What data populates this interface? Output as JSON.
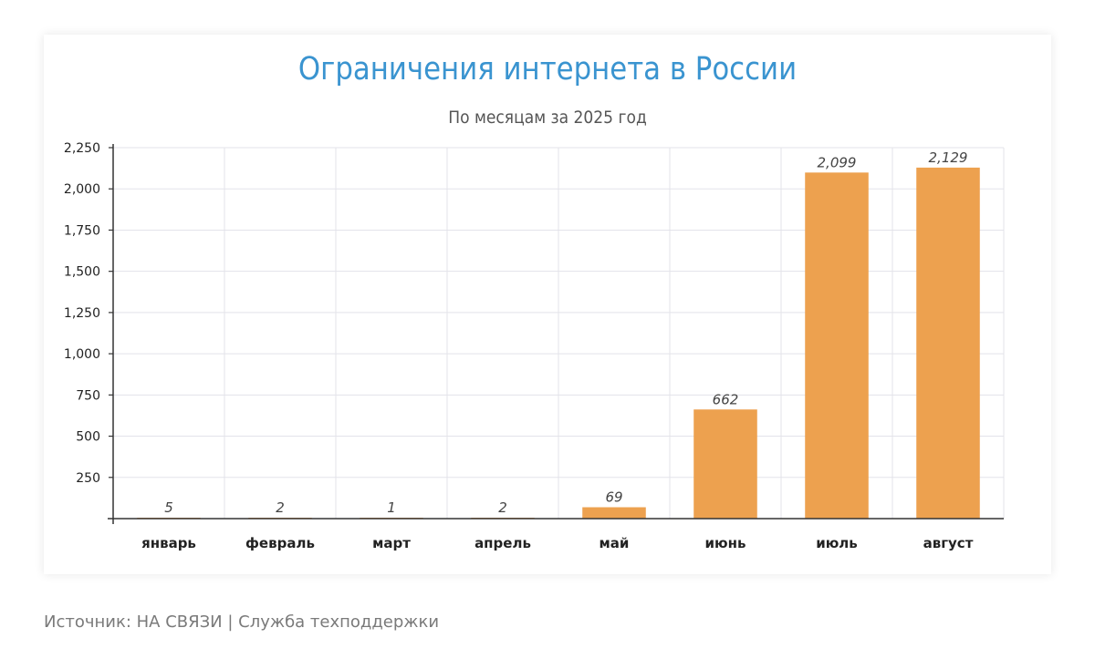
{
  "chart_data": {
    "type": "bar",
    "title": "Ограничения интернета в России",
    "subtitle": "По месяцам за 2025 год",
    "categories": [
      "январь",
      "февраль",
      "март",
      "апрель",
      "май",
      "июнь",
      "июль",
      "август"
    ],
    "values": [
      5,
      2,
      1,
      2,
      69,
      662,
      2099,
      2129
    ],
    "value_labels": [
      "5",
      "2",
      "1",
      "2",
      "69",
      "662",
      "2,099",
      "2,129"
    ],
    "ylim": [
      0,
      2250
    ],
    "yticks": [
      250,
      500,
      750,
      1000,
      1250,
      1500,
      1750,
      2000,
      2250
    ],
    "ytick_labels": [
      "250",
      "500",
      "750",
      "1,000",
      "1,250",
      "1,500",
      "1,750",
      "2,000",
      "2,250"
    ],
    "xlabel": "",
    "ylabel": "",
    "grid": true,
    "bar_color": "#eda14f",
    "title_color": "#3a94d0"
  },
  "source": "Источник: НА СВЯЗИ | Служба техподдержки"
}
